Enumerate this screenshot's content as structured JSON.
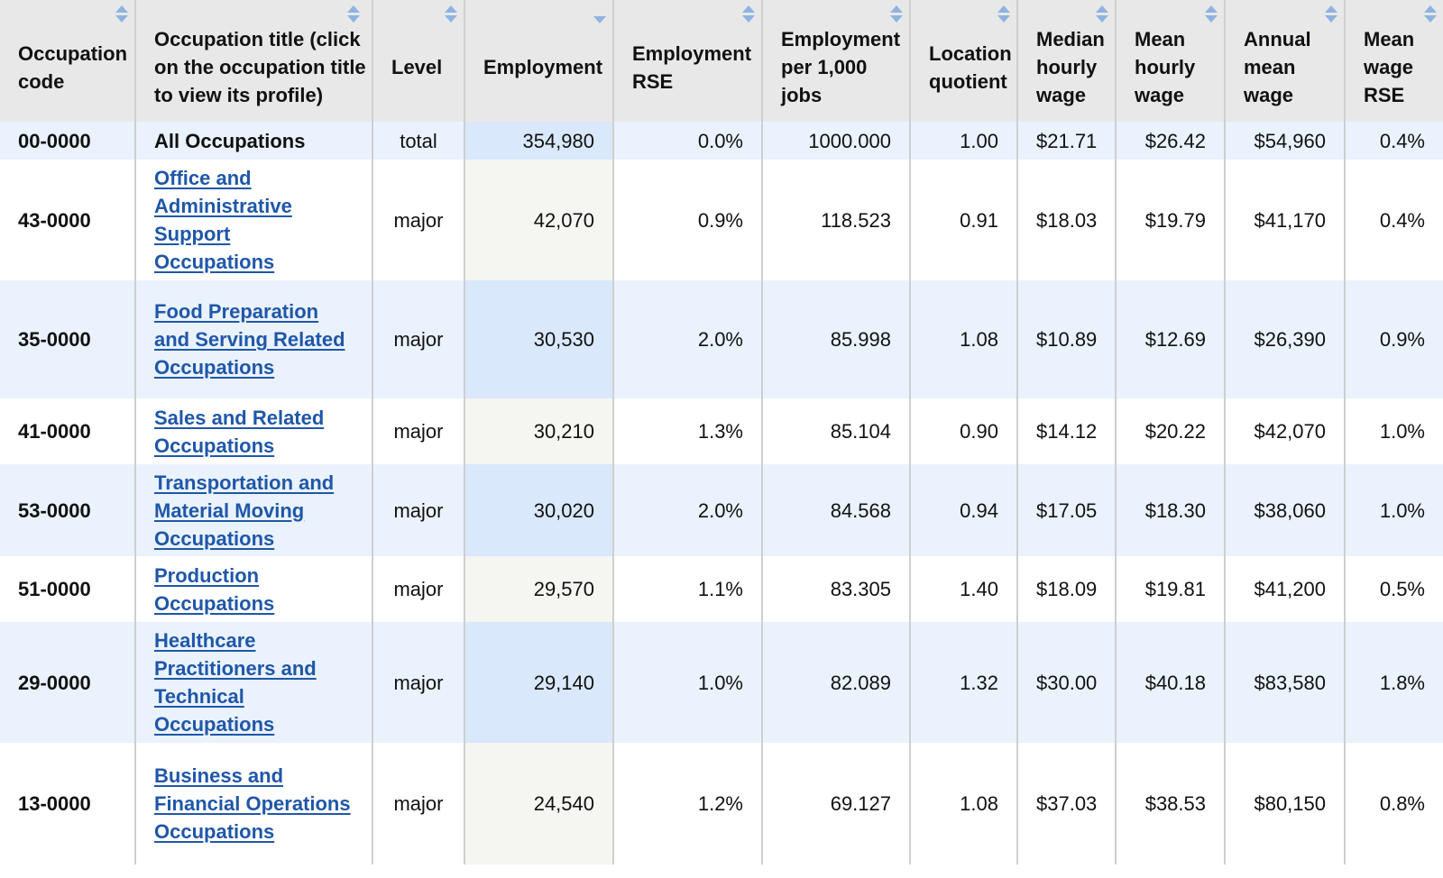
{
  "table": {
    "headers": [
      "Occupation code",
      "Occupation title (click on the occupation title to view its profile)",
      "Level",
      "Employment",
      "Employment RSE",
      "Employment per 1,000 jobs",
      "Location quotient",
      "Median hourly wage",
      "Mean hourly wage",
      "Annual mean wage",
      "Mean wage RSE"
    ],
    "sort_icons": [
      "sort-up-down-icon",
      "sort-up-down-icon",
      "sort-up-down-icon",
      "sort-down-icon",
      "sort-up-down-icon",
      "sort-up-down-icon",
      "sort-up-down-icon",
      "sort-up-down-icon",
      "sort-up-down-icon",
      "sort-up-down-icon",
      "sort-up-down-icon"
    ],
    "rows": [
      {
        "code": "00-0000",
        "title": "All Occupations",
        "level": "total",
        "employment": "354,980",
        "employment_rse": "0.0%",
        "per_1000": "1000.000",
        "lq": "1.00",
        "median_hourly": "$21.71",
        "mean_hourly": "$26.42",
        "annual_mean": "$54,960",
        "mean_wage_rse": "0.4%"
      },
      {
        "code": "43-0000",
        "title": "Office and Administrative Support Occupations",
        "level": "major",
        "employment": "42,070",
        "employment_rse": "0.9%",
        "per_1000": "118.523",
        "lq": "0.91",
        "median_hourly": "$18.03",
        "mean_hourly": "$19.79",
        "annual_mean": "$41,170",
        "mean_wage_rse": "0.4%"
      },
      {
        "code": "35-0000",
        "title": "Food Preparation and Serving Related Occupations",
        "level": "major",
        "employment": "30,530",
        "employment_rse": "2.0%",
        "per_1000": "85.998",
        "lq": "1.08",
        "median_hourly": "$10.89",
        "mean_hourly": "$12.69",
        "annual_mean": "$26,390",
        "mean_wage_rse": "0.9%"
      },
      {
        "code": "41-0000",
        "title": "Sales and Related Occupations",
        "level": "major",
        "employment": "30,210",
        "employment_rse": "1.3%",
        "per_1000": "85.104",
        "lq": "0.90",
        "median_hourly": "$14.12",
        "mean_hourly": "$20.22",
        "annual_mean": "$42,070",
        "mean_wage_rse": "1.0%"
      },
      {
        "code": "53-0000",
        "title": "Transportation and Material Moving Occupations",
        "level": "major",
        "employment": "30,020",
        "employment_rse": "2.0%",
        "per_1000": "84.568",
        "lq": "0.94",
        "median_hourly": "$17.05",
        "mean_hourly": "$18.30",
        "annual_mean": "$38,060",
        "mean_wage_rse": "1.0%"
      },
      {
        "code": "51-0000",
        "title": "Production Occupations",
        "level": "major",
        "employment": "29,570",
        "employment_rse": "1.1%",
        "per_1000": "83.305",
        "lq": "1.40",
        "median_hourly": "$18.09",
        "mean_hourly": "$19.81",
        "annual_mean": "$41,200",
        "mean_wage_rse": "0.5%"
      },
      {
        "code": "29-0000",
        "title": "Healthcare Practitioners and Technical Occupations",
        "level": "major",
        "employment": "29,140",
        "employment_rse": "1.0%",
        "per_1000": "82.089",
        "lq": "1.32",
        "median_hourly": "$30.00",
        "mean_hourly": "$40.18",
        "annual_mean": "$83,580",
        "mean_wage_rse": "1.8%"
      },
      {
        "code": "13-0000",
        "title": "Business and Financial Operations Occupations",
        "level": "major",
        "employment": "24,540",
        "employment_rse": "1.2%",
        "per_1000": "69.127",
        "lq": "1.08",
        "median_hourly": "$37.03",
        "mean_hourly": "$38.53",
        "annual_mean": "$80,150",
        "mean_wage_rse": "0.8%"
      }
    ]
  },
  "colors": {
    "header_bg": "#e8e8e8",
    "link": "#1f57a8",
    "row_alt": "#eaf2fd",
    "sorted_col": "#d9e8fb",
    "sort_icon": "#8fb3e0"
  }
}
